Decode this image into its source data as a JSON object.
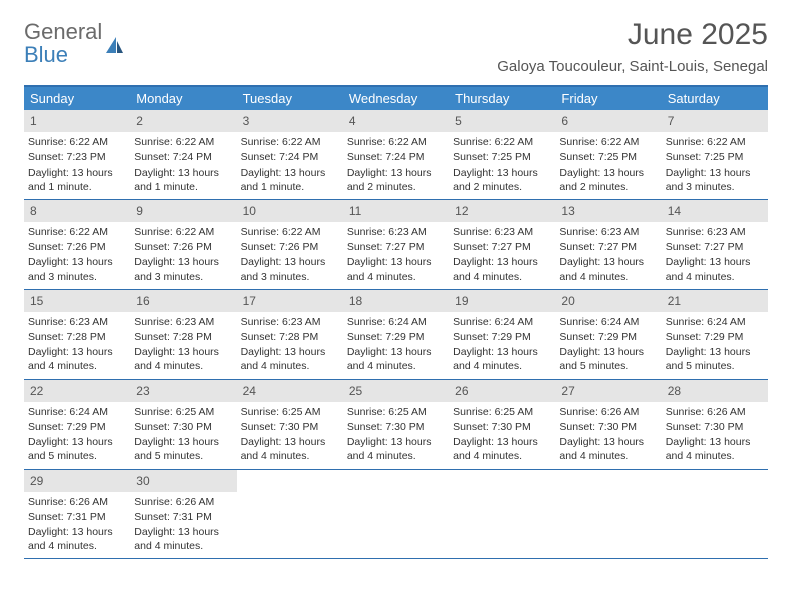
{
  "logo": {
    "line1": "General",
    "line2": "Blue"
  },
  "title": "June 2025",
  "location": "Galoya Toucouleur, Saint-Louis, Senegal",
  "style": {
    "accent": "#3c87c8",
    "rule": "#2f6faf",
    "daybar": "#e5e5e5",
    "bg": "#ffffff",
    "text": "#333333",
    "muted": "#555555",
    "title_fontsize": 30,
    "dow_fontsize": 13,
    "info_fontsize": 10.5,
    "columns": 7
  },
  "daysOfWeek": [
    "Sunday",
    "Monday",
    "Tuesday",
    "Wednesday",
    "Thursday",
    "Friday",
    "Saturday"
  ],
  "weeks": [
    [
      {
        "n": "1",
        "sunrise": "Sunrise: 6:22 AM",
        "sunset": "Sunset: 7:23 PM",
        "daylight": "Daylight: 13 hours and 1 minute."
      },
      {
        "n": "2",
        "sunrise": "Sunrise: 6:22 AM",
        "sunset": "Sunset: 7:24 PM",
        "daylight": "Daylight: 13 hours and 1 minute."
      },
      {
        "n": "3",
        "sunrise": "Sunrise: 6:22 AM",
        "sunset": "Sunset: 7:24 PM",
        "daylight": "Daylight: 13 hours and 1 minute."
      },
      {
        "n": "4",
        "sunrise": "Sunrise: 6:22 AM",
        "sunset": "Sunset: 7:24 PM",
        "daylight": "Daylight: 13 hours and 2 minutes."
      },
      {
        "n": "5",
        "sunrise": "Sunrise: 6:22 AM",
        "sunset": "Sunset: 7:25 PM",
        "daylight": "Daylight: 13 hours and 2 minutes."
      },
      {
        "n": "6",
        "sunrise": "Sunrise: 6:22 AM",
        "sunset": "Sunset: 7:25 PM",
        "daylight": "Daylight: 13 hours and 2 minutes."
      },
      {
        "n": "7",
        "sunrise": "Sunrise: 6:22 AM",
        "sunset": "Sunset: 7:25 PM",
        "daylight": "Daylight: 13 hours and 3 minutes."
      }
    ],
    [
      {
        "n": "8",
        "sunrise": "Sunrise: 6:22 AM",
        "sunset": "Sunset: 7:26 PM",
        "daylight": "Daylight: 13 hours and 3 minutes."
      },
      {
        "n": "9",
        "sunrise": "Sunrise: 6:22 AM",
        "sunset": "Sunset: 7:26 PM",
        "daylight": "Daylight: 13 hours and 3 minutes."
      },
      {
        "n": "10",
        "sunrise": "Sunrise: 6:22 AM",
        "sunset": "Sunset: 7:26 PM",
        "daylight": "Daylight: 13 hours and 3 minutes."
      },
      {
        "n": "11",
        "sunrise": "Sunrise: 6:23 AM",
        "sunset": "Sunset: 7:27 PM",
        "daylight": "Daylight: 13 hours and 4 minutes."
      },
      {
        "n": "12",
        "sunrise": "Sunrise: 6:23 AM",
        "sunset": "Sunset: 7:27 PM",
        "daylight": "Daylight: 13 hours and 4 minutes."
      },
      {
        "n": "13",
        "sunrise": "Sunrise: 6:23 AM",
        "sunset": "Sunset: 7:27 PM",
        "daylight": "Daylight: 13 hours and 4 minutes."
      },
      {
        "n": "14",
        "sunrise": "Sunrise: 6:23 AM",
        "sunset": "Sunset: 7:27 PM",
        "daylight": "Daylight: 13 hours and 4 minutes."
      }
    ],
    [
      {
        "n": "15",
        "sunrise": "Sunrise: 6:23 AM",
        "sunset": "Sunset: 7:28 PM",
        "daylight": "Daylight: 13 hours and 4 minutes."
      },
      {
        "n": "16",
        "sunrise": "Sunrise: 6:23 AM",
        "sunset": "Sunset: 7:28 PM",
        "daylight": "Daylight: 13 hours and 4 minutes."
      },
      {
        "n": "17",
        "sunrise": "Sunrise: 6:23 AM",
        "sunset": "Sunset: 7:28 PM",
        "daylight": "Daylight: 13 hours and 4 minutes."
      },
      {
        "n": "18",
        "sunrise": "Sunrise: 6:24 AM",
        "sunset": "Sunset: 7:29 PM",
        "daylight": "Daylight: 13 hours and 4 minutes."
      },
      {
        "n": "19",
        "sunrise": "Sunrise: 6:24 AM",
        "sunset": "Sunset: 7:29 PM",
        "daylight": "Daylight: 13 hours and 4 minutes."
      },
      {
        "n": "20",
        "sunrise": "Sunrise: 6:24 AM",
        "sunset": "Sunset: 7:29 PM",
        "daylight": "Daylight: 13 hours and 5 minutes."
      },
      {
        "n": "21",
        "sunrise": "Sunrise: 6:24 AM",
        "sunset": "Sunset: 7:29 PM",
        "daylight": "Daylight: 13 hours and 5 minutes."
      }
    ],
    [
      {
        "n": "22",
        "sunrise": "Sunrise: 6:24 AM",
        "sunset": "Sunset: 7:29 PM",
        "daylight": "Daylight: 13 hours and 5 minutes."
      },
      {
        "n": "23",
        "sunrise": "Sunrise: 6:25 AM",
        "sunset": "Sunset: 7:30 PM",
        "daylight": "Daylight: 13 hours and 5 minutes."
      },
      {
        "n": "24",
        "sunrise": "Sunrise: 6:25 AM",
        "sunset": "Sunset: 7:30 PM",
        "daylight": "Daylight: 13 hours and 4 minutes."
      },
      {
        "n": "25",
        "sunrise": "Sunrise: 6:25 AM",
        "sunset": "Sunset: 7:30 PM",
        "daylight": "Daylight: 13 hours and 4 minutes."
      },
      {
        "n": "26",
        "sunrise": "Sunrise: 6:25 AM",
        "sunset": "Sunset: 7:30 PM",
        "daylight": "Daylight: 13 hours and 4 minutes."
      },
      {
        "n": "27",
        "sunrise": "Sunrise: 6:26 AM",
        "sunset": "Sunset: 7:30 PM",
        "daylight": "Daylight: 13 hours and 4 minutes."
      },
      {
        "n": "28",
        "sunrise": "Sunrise: 6:26 AM",
        "sunset": "Sunset: 7:30 PM",
        "daylight": "Daylight: 13 hours and 4 minutes."
      }
    ],
    [
      {
        "n": "29",
        "sunrise": "Sunrise: 6:26 AM",
        "sunset": "Sunset: 7:31 PM",
        "daylight": "Daylight: 13 hours and 4 minutes."
      },
      {
        "n": "30",
        "sunrise": "Sunrise: 6:26 AM",
        "sunset": "Sunset: 7:31 PM",
        "daylight": "Daylight: 13 hours and 4 minutes."
      },
      null,
      null,
      null,
      null,
      null
    ]
  ]
}
